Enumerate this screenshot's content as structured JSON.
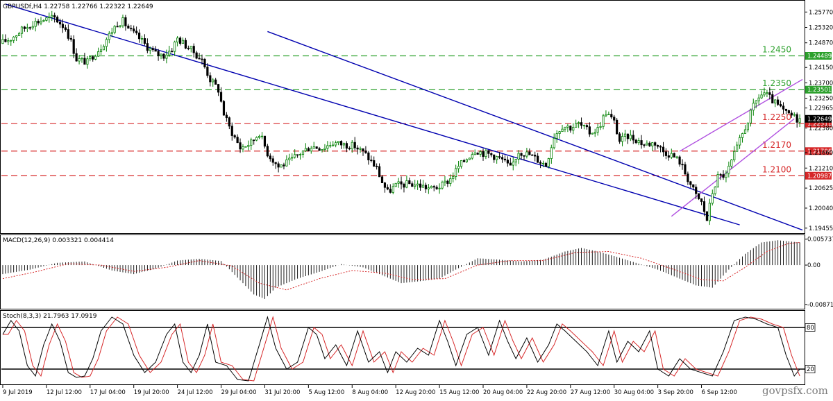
{
  "header": {
    "main_title": "GBPUSDf,H4  1.22758 1.22766 1.22322 1.22649",
    "macd_title": "MACD(12,26,9) 0.003321 0.004414",
    "stoch_title": "Stoch(8,3,3) 21.7963 17.0919"
  },
  "watermark": "govpsfx.com",
  "colors": {
    "bull": "#008000",
    "bear": "#000000",
    "green_level": "#2ca02c",
    "red_level": "#d62728",
    "down_channel": "#0000b0",
    "up_channel": "#b050e0",
    "signal": "#d62728",
    "stoch_signal": "#d62728"
  },
  "chart_data": [
    {
      "type": "candlestick",
      "symbol": "GBPUSDf",
      "timeframe": "H4",
      "ohlc_last": {
        "open": 1.22758,
        "high": 1.22766,
        "low": 1.22322,
        "close": 1.22649
      },
      "ylim": [
        1.1935,
        1.2604
      ],
      "y_ticks": [
        "1.25770",
        "1.25320",
        "1.24870",
        "1.24150",
        "1.23700",
        "1.23250",
        "1.22965",
        "1.22380",
        "1.21660",
        "1.21210",
        "1.20625",
        "1.20040",
        "1.19455"
      ],
      "y_tick_values": [
        1.2577,
        1.2532,
        1.2487,
        1.2415,
        1.237,
        1.2325,
        1.22965,
        1.2238,
        1.2166,
        1.2121,
        1.20625,
        1.2004,
        1.19455
      ],
      "x_tick_labels": [
        "9 Jul 2019",
        "12 Jul 12:00",
        "17 Jul 04:00",
        "19 Jul 20:00",
        "24 Jul 12:00",
        "29 Jul 04:00",
        "31 Jul 20:00",
        "5 Aug 12:00",
        "8 Aug 04:00",
        "12 Aug 20:00",
        "15 Aug 12:00",
        "20 Aug 04:00",
        "22 Aug 20:00",
        "27 Aug 12:00",
        "30 Aug 04:00",
        "3 Sep 20:00",
        "6 Sep 12:00"
      ],
      "x_tick_bars": [
        0,
        16,
        32,
        48,
        64,
        80,
        96,
        112,
        128,
        144,
        160,
        176,
        192,
        208,
        224,
        240,
        256
      ],
      "bar_count": 266,
      "levels": [
        {
          "label": "1.2450",
          "value": 1.24489,
          "tag": "1.24489",
          "color": "green"
        },
        {
          "label": "1.2350",
          "value": 1.23501,
          "tag": "1.23501",
          "color": "green"
        },
        {
          "label": "1.2250",
          "value": 1.22511,
          "tag": "1.22511",
          "color": "red"
        },
        {
          "label": "1.2170",
          "value": 1.21706,
          "tag": "1.21706",
          "color": "red"
        },
        {
          "label": "1.2100",
          "value": 1.20987,
          "tag": "1.20987",
          "color": "red"
        }
      ],
      "current_price_tag": "1.22649",
      "current_price": 1.22649,
      "anchors": [
        [
          0,
          1.2485
        ],
        [
          4,
          1.25
        ],
        [
          8,
          1.2525
        ],
        [
          12,
          1.2545
        ],
        [
          16,
          1.2555
        ],
        [
          20,
          1.256
        ],
        [
          24,
          1.253
        ],
        [
          26,
          1.249
        ],
        [
          28,
          1.244
        ],
        [
          32,
          1.243
        ],
        [
          34,
          1.245
        ],
        [
          37,
          1.2475
        ],
        [
          40,
          1.251
        ],
        [
          43,
          1.2545
        ],
        [
          45,
          1.255
        ],
        [
          48,
          1.252
        ],
        [
          51,
          1.25
        ],
        [
          54,
          1.2475
        ],
        [
          57,
          1.2455
        ],
        [
          60,
          1.245
        ],
        [
          63,
          1.247
        ],
        [
          65,
          1.25
        ],
        [
          68,
          1.248
        ],
        [
          71,
          1.246
        ],
        [
          74,
          1.2435
        ],
        [
          77,
          1.238
        ],
        [
          80,
          1.235
        ],
        [
          82,
          1.228
        ],
        [
          84,
          1.224
        ],
        [
          88,
          1.218
        ],
        [
          92,
          1.2195
        ],
        [
          95,
          1.2225
        ],
        [
          98,
          1.2165
        ],
        [
          102,
          1.2125
        ],
        [
          106,
          1.214
        ],
        [
          110,
          1.2165
        ],
        [
          114,
          1.2185
        ],
        [
          118,
          1.218
        ],
        [
          122,
          1.2195
        ],
        [
          126,
          1.219
        ],
        [
          130,
          1.2185
        ],
        [
          134,
          1.216
        ],
        [
          138,
          1.212
        ],
        [
          140,
          1.208
        ],
        [
          142,
          1.205
        ],
        [
          145,
          1.207
        ],
        [
          150,
          1.2075
        ],
        [
          154,
          1.207
        ],
        [
          158,
          1.206
        ],
        [
          162,
          1.207
        ],
        [
          165,
          1.209
        ],
        [
          168,
          1.2125
        ],
        [
          171,
          1.215
        ],
        [
          174,
          1.2175
        ],
        [
          177,
          1.2165
        ],
        [
          180,
          1.216
        ],
        [
          184,
          1.2145
        ],
        [
          187,
          1.212
        ],
        [
          190,
          1.217
        ],
        [
          194,
          1.216
        ],
        [
          196,
          1.215
        ],
        [
          200,
          1.213
        ],
        [
          203,
          1.2215
        ],
        [
          206,
          1.2245
        ],
        [
          209,
          1.224
        ],
        [
          212,
          1.225
        ],
        [
          216,
          1.2225
        ],
        [
          219,
          1.2235
        ],
        [
          222,
          1.2285
        ],
        [
          225,
          1.2255
        ],
        [
          227,
          1.22
        ],
        [
          230,
          1.2215
        ],
        [
          233,
          1.2205
        ],
        [
          236,
          1.219
        ],
        [
          240,
          1.2195
        ],
        [
          243,
          1.217
        ],
        [
          246,
          1.216
        ],
        [
          249,
          1.214
        ],
        [
          252,
          1.209
        ],
        [
          255,
          1.204
        ],
        [
          257,
          1.202
        ],
        [
          259,
          1.197
        ],
        [
          261,
          1.205
        ],
        [
          263,
          1.2095
        ],
        [
          265,
          1.21
        ]
      ],
      "anchors_tail": [
        [
          266,
          1.21
        ],
        [
          268,
          1.214
        ],
        [
          270,
          1.218
        ],
        [
          272,
          1.222
        ],
        [
          274,
          1.226
        ],
        [
          276,
          1.23
        ],
        [
          278,
          1.233
        ],
        [
          280,
          1.234
        ],
        [
          282,
          1.2325
        ],
        [
          284,
          1.231
        ],
        [
          286,
          1.2295
        ],
        [
          288,
          1.228
        ],
        [
          290,
          1.2275
        ],
        [
          292,
          1.2265
        ]
      ],
      "down_channel_upper": [
        [
          1.0,
          1.26
        ],
        [
          270.0,
          1.1955
        ]
      ],
      "down_channel_lower": [
        [
          97.0,
          1.252
        ],
        [
          293.0,
          1.194
        ]
      ],
      "up_channel_upper": [
        [
          248.0,
          1.217
        ],
        [
          293.0,
          1.238
        ]
      ],
      "up_channel_lower": [
        [
          245.0,
          1.198
        ],
        [
          290.0,
          1.2265
        ]
      ]
    },
    {
      "type": "histogram",
      "name": "MACD",
      "ylim": [
        -0.0092,
        0.006
      ],
      "y_ticks": [
        "0.005737",
        "0.00",
        "-0.008719"
      ],
      "y_tick_values": [
        0.005737,
        0.0,
        -0.008719
      ],
      "anchors": [
        [
          0,
          -0.002
        ],
        [
          10,
          -0.001
        ],
        [
          20,
          0.0005
        ],
        [
          30,
          0.0008
        ],
        [
          40,
          -0.0012
        ],
        [
          48,
          -0.002
        ],
        [
          56,
          -0.0008
        ],
        [
          64,
          0.001
        ],
        [
          72,
          0.0014
        ],
        [
          80,
          0.0009
        ],
        [
          88,
          -0.004
        ],
        [
          92,
          -0.0065
        ],
        [
          96,
          -0.0075
        ],
        [
          100,
          -0.005
        ],
        [
          108,
          -0.003
        ],
        [
          116,
          -0.0015
        ],
        [
          124,
          0.0002
        ],
        [
          132,
          -0.0005
        ],
        [
          140,
          -0.0025
        ],
        [
          146,
          -0.004
        ],
        [
          154,
          -0.0035
        ],
        [
          160,
          -0.003
        ],
        [
          166,
          -0.001
        ],
        [
          174,
          0.0015
        ],
        [
          182,
          0.0012
        ],
        [
          190,
          0.0008
        ],
        [
          198,
          0.0012
        ],
        [
          206,
          0.003
        ],
        [
          212,
          0.0038
        ],
        [
          218,
          0.003
        ],
        [
          224,
          0.002
        ],
        [
          232,
          0.0005
        ],
        [
          240,
          -0.001
        ],
        [
          248,
          -0.003
        ],
        [
          254,
          -0.0045
        ],
        [
          260,
          -0.005
        ],
        [
          266,
          -0.001
        ],
        [
          272,
          0.0025
        ],
        [
          278,
          0.005
        ],
        [
          284,
          0.0055
        ],
        [
          292,
          0.005
        ]
      ],
      "signal_anchors": [
        [
          0,
          -0.003
        ],
        [
          12,
          -0.0015
        ],
        [
          24,
          0.0003
        ],
        [
          36,
          0.0
        ],
        [
          48,
          -0.0014
        ],
        [
          60,
          -0.0005
        ],
        [
          72,
          0.001
        ],
        [
          84,
          -0.0002
        ],
        [
          94,
          -0.004
        ],
        [
          104,
          -0.0055
        ],
        [
          116,
          -0.003
        ],
        [
          128,
          -0.0012
        ],
        [
          140,
          -0.0018
        ],
        [
          150,
          -0.0032
        ],
        [
          162,
          -0.003
        ],
        [
          174,
          0.0
        ],
        [
          186,
          0.001
        ],
        [
          198,
          0.001
        ],
        [
          210,
          0.0028
        ],
        [
          222,
          0.003
        ],
        [
          234,
          0.0015
        ],
        [
          246,
          -0.001
        ],
        [
          256,
          -0.0032
        ],
        [
          264,
          -0.0035
        ],
        [
          272,
          -0.0005
        ],
        [
          280,
          0.003
        ],
        [
          288,
          0.0048
        ],
        [
          292,
          0.005
        ]
      ]
    },
    {
      "type": "line",
      "name": "Stochastic",
      "ylim": [
        0,
        100
      ],
      "y_ticks": [
        "80",
        "20"
      ],
      "levels": [
        80,
        20
      ],
      "anchors": [
        [
          0,
          70
        ],
        [
          3,
          90
        ],
        [
          6,
          75
        ],
        [
          9,
          25
        ],
        [
          12,
          10
        ],
        [
          15,
          55
        ],
        [
          18,
          85
        ],
        [
          21,
          60
        ],
        [
          24,
          15
        ],
        [
          27,
          8
        ],
        [
          30,
          10
        ],
        [
          33,
          35
        ],
        [
          36,
          75
        ],
        [
          40,
          95
        ],
        [
          44,
          85
        ],
        [
          48,
          40
        ],
        [
          52,
          15
        ],
        [
          56,
          30
        ],
        [
          60,
          70
        ],
        [
          63,
          85
        ],
        [
          66,
          30
        ],
        [
          69,
          15
        ],
        [
          72,
          40
        ],
        [
          75,
          85
        ],
        [
          78,
          30
        ],
        [
          82,
          25
        ],
        [
          86,
          5
        ],
        [
          90,
          3
        ],
        [
          94,
          55
        ],
        [
          97,
          95
        ],
        [
          100,
          50
        ],
        [
          104,
          20
        ],
        [
          108,
          30
        ],
        [
          112,
          80
        ],
        [
          115,
          70
        ],
        [
          118,
          35
        ],
        [
          122,
          55
        ],
        [
          126,
          25
        ],
        [
          130,
          75
        ],
        [
          134,
          30
        ],
        [
          138,
          45
        ],
        [
          141,
          15
        ],
        [
          144,
          45
        ],
        [
          148,
          30
        ],
        [
          152,
          50
        ],
        [
          156,
          40
        ],
        [
          160,
          90
        ],
        [
          163,
          60
        ],
        [
          166,
          25
        ],
        [
          170,
          70
        ],
        [
          174,
          80
        ],
        [
          178,
          40
        ],
        [
          182,
          90
        ],
        [
          185,
          60
        ],
        [
          188,
          35
        ],
        [
          192,
          65
        ],
        [
          196,
          30
        ],
        [
          200,
          55
        ],
        [
          203,
          85
        ],
        [
          206,
          75
        ],
        [
          210,
          60
        ],
        [
          214,
          45
        ],
        [
          218,
          25
        ],
        [
          222,
          75
        ],
        [
          225,
          30
        ],
        [
          229,
          60
        ],
        [
          233,
          45
        ],
        [
          237,
          75
        ],
        [
          240,
          20
        ],
        [
          244,
          10
        ],
        [
          248,
          35
        ],
        [
          252,
          20
        ],
        [
          256,
          15
        ],
        [
          260,
          10
        ],
        [
          264,
          45
        ],
        [
          268,
          90
        ],
        [
          272,
          95
        ],
        [
          276,
          92
        ],
        [
          280,
          85
        ],
        [
          284,
          80
        ],
        [
          287,
          40
        ],
        [
          290,
          10
        ],
        [
          292,
          20
        ]
      ]
    }
  ]
}
